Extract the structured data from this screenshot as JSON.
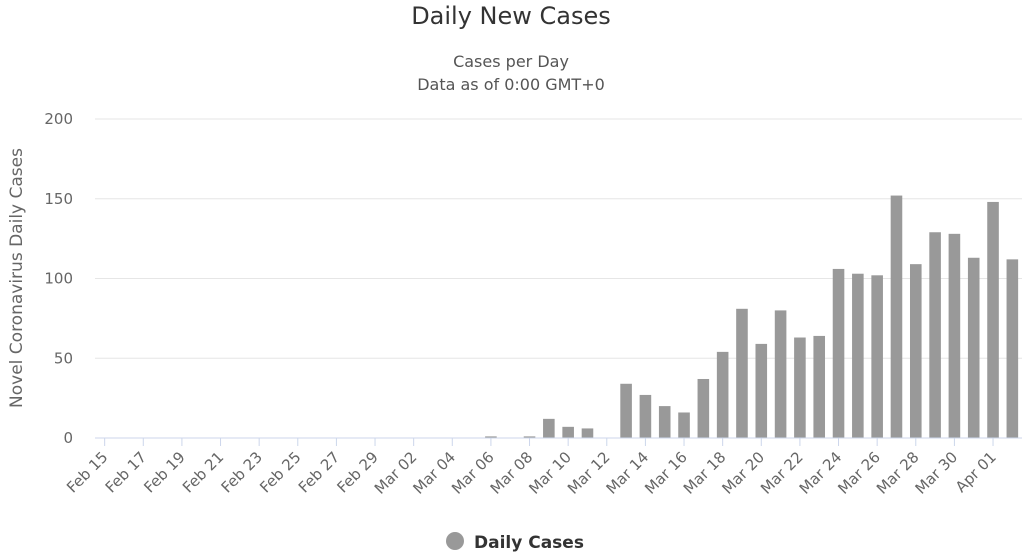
{
  "chart_data": {
    "type": "bar",
    "title": "Daily New Cases",
    "subtitle": [
      "Cases per Day",
      "Data as of 0:00 GMT+0"
    ],
    "y_label": "Novel Coronavirus Daily Cases",
    "categories": [
      "Feb 15",
      null,
      "Feb 17",
      null,
      "Feb 19",
      null,
      "Feb 21",
      null,
      "Feb 23",
      null,
      "Feb 25",
      null,
      "Feb 27",
      null,
      "Feb 29",
      null,
      "Mar 02",
      null,
      "Mar 04",
      null,
      "Mar 06",
      null,
      "Mar 08",
      null,
      "Mar 10",
      null,
      "Mar 12",
      null,
      "Mar 14",
      null,
      "Mar 16",
      null,
      "Mar 18",
      null,
      "Mar 20",
      null,
      "Mar 22",
      null,
      "Mar 24",
      null,
      "Mar 26",
      null,
      "Mar 28",
      null,
      "Mar 30",
      null,
      "Apr 01",
      null
    ],
    "series": [
      {
        "name": "Daily Cases",
        "color": "#999999",
        "values": [
          0,
          0,
          0,
          0,
          0,
          0,
          0,
          0,
          0,
          0,
          0,
          0,
          0,
          0,
          0,
          0,
          0,
          0,
          0,
          0,
          1,
          0,
          1,
          12,
          7,
          6,
          0,
          34,
          27,
          20,
          16,
          37,
          54,
          81,
          59,
          80,
          63,
          64,
          106,
          103,
          102,
          152,
          109,
          129,
          128,
          113,
          148,
          112
        ]
      }
    ],
    "ylim": [
      0,
      200
    ],
    "yticks": [
      0,
      50,
      100,
      150,
      200
    ],
    "grid": true
  }
}
